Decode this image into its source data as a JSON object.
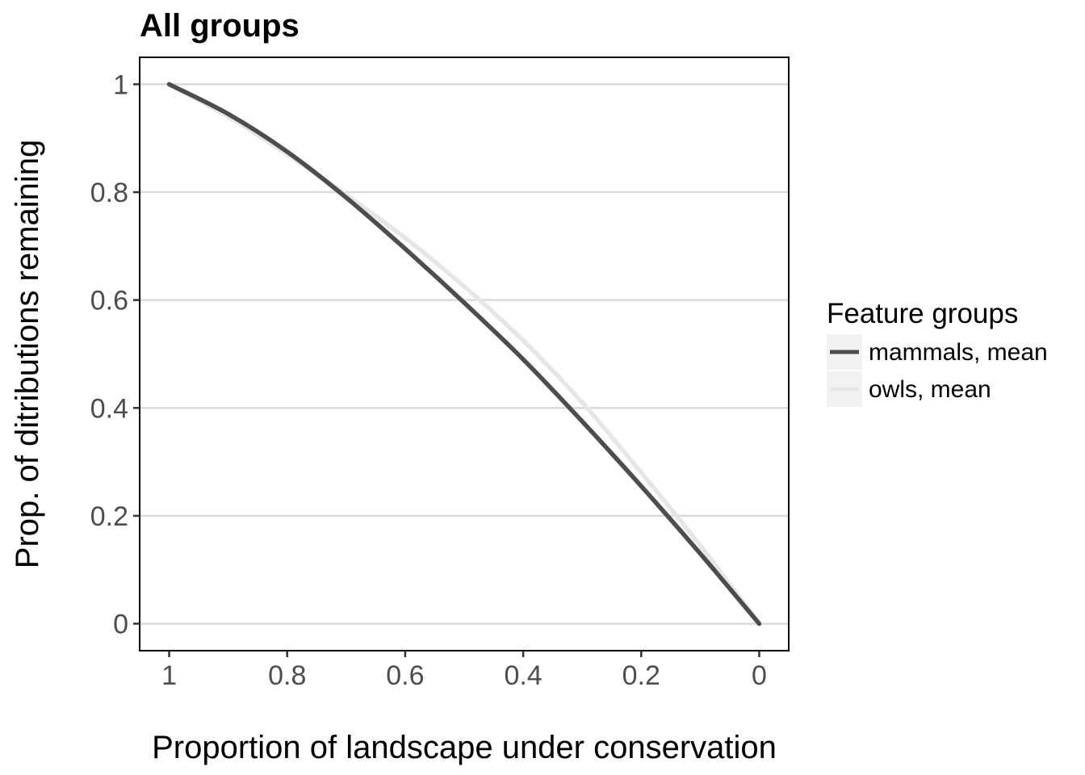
{
  "chart_data": {
    "type": "line",
    "title": "All groups",
    "xlabel": "Proportion of landscape under conservation",
    "ylabel": "Prop. of ditributions remaining",
    "x_reversed": true,
    "xlim": [
      1.05,
      -0.05
    ],
    "ylim": [
      -0.05,
      1.05
    ],
    "x_ticks": [
      1,
      0.8,
      0.6,
      0.4,
      0.2,
      0
    ],
    "x_tick_labels": [
      "1",
      "0.8",
      "0.6",
      "0.4",
      "0.2",
      "0"
    ],
    "y_ticks": [
      0,
      0.2,
      0.4,
      0.6,
      0.8,
      1
    ],
    "y_tick_labels": [
      "0",
      "0.2",
      "0.4",
      "0.6",
      "0.8",
      "1"
    ],
    "grid": "horizontal major lines",
    "legend": {
      "title": "Feature groups",
      "position": "right"
    },
    "series": [
      {
        "name": "mammals, mean",
        "color": "#4d4d4d",
        "x": [
          1,
          0.9,
          0.8,
          0.7,
          0.6,
          0.5,
          0.4,
          0.3,
          0.2,
          0.1,
          0
        ],
        "y": [
          1,
          0.945,
          0.875,
          0.79,
          0.695,
          0.595,
          0.49,
          0.375,
          0.255,
          0.13,
          0
        ]
      },
      {
        "name": "owls, mean",
        "color": "#e6e6e6",
        "x": [
          1,
          0.9,
          0.8,
          0.7,
          0.6,
          0.5,
          0.4,
          0.3,
          0.2,
          0.1,
          0
        ],
        "y": [
          1,
          0.94,
          0.87,
          0.795,
          0.715,
          0.625,
          0.525,
          0.41,
          0.28,
          0.145,
          0
        ]
      }
    ]
  }
}
